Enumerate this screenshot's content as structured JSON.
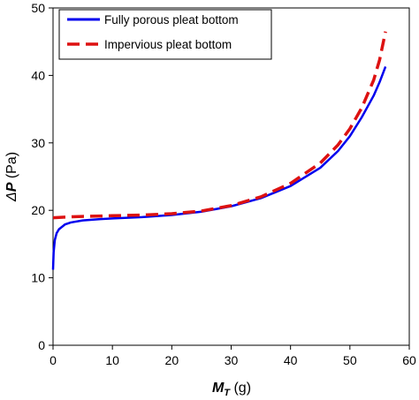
{
  "chart_data": {
    "type": "line",
    "title": "",
    "xlabel": {
      "symbol": "M",
      "subscript": "T",
      "unit": " (g)"
    },
    "ylabel": {
      "prefix": "Δ",
      "symbol": "P",
      "unit": " (Pa)"
    },
    "xlim": [
      0,
      60
    ],
    "ylim": [
      0,
      50
    ],
    "xticks": [
      "0",
      "10",
      "20",
      "30",
      "40",
      "50",
      "60"
    ],
    "yticks": [
      "0",
      "10",
      "20",
      "30",
      "40",
      "50"
    ],
    "grid": false,
    "legend_position": "top-left",
    "series": [
      {
        "name": "Fully porous pleat bottom",
        "color": "#0000ee",
        "style": "solid",
        "x": [
          0,
          0.1,
          0.3,
          0.6,
          1,
          2,
          3,
          5,
          8,
          10,
          15,
          20,
          25,
          30,
          35,
          40,
          45,
          48,
          50,
          52,
          54,
          55,
          56
        ],
        "y": [
          11.2,
          13.8,
          15.6,
          16.6,
          17.2,
          17.9,
          18.2,
          18.5,
          18.7,
          18.8,
          19.0,
          19.3,
          19.8,
          20.6,
          21.8,
          23.6,
          26.3,
          28.8,
          31.0,
          33.8,
          37.0,
          39.0,
          41.3
        ]
      },
      {
        "name": "Impervious pleat bottom",
        "color": "#dd1111",
        "style": "dashed",
        "x": [
          0,
          2,
          5,
          10,
          15,
          20,
          25,
          30,
          35,
          40,
          45,
          48,
          50,
          52,
          54,
          55,
          56
        ],
        "y": [
          18.9,
          19.0,
          19.1,
          19.2,
          19.3,
          19.5,
          19.9,
          20.7,
          22.0,
          24.0,
          27.0,
          29.7,
          32.1,
          35.2,
          39.3,
          42.3,
          46.5
        ]
      }
    ]
  }
}
